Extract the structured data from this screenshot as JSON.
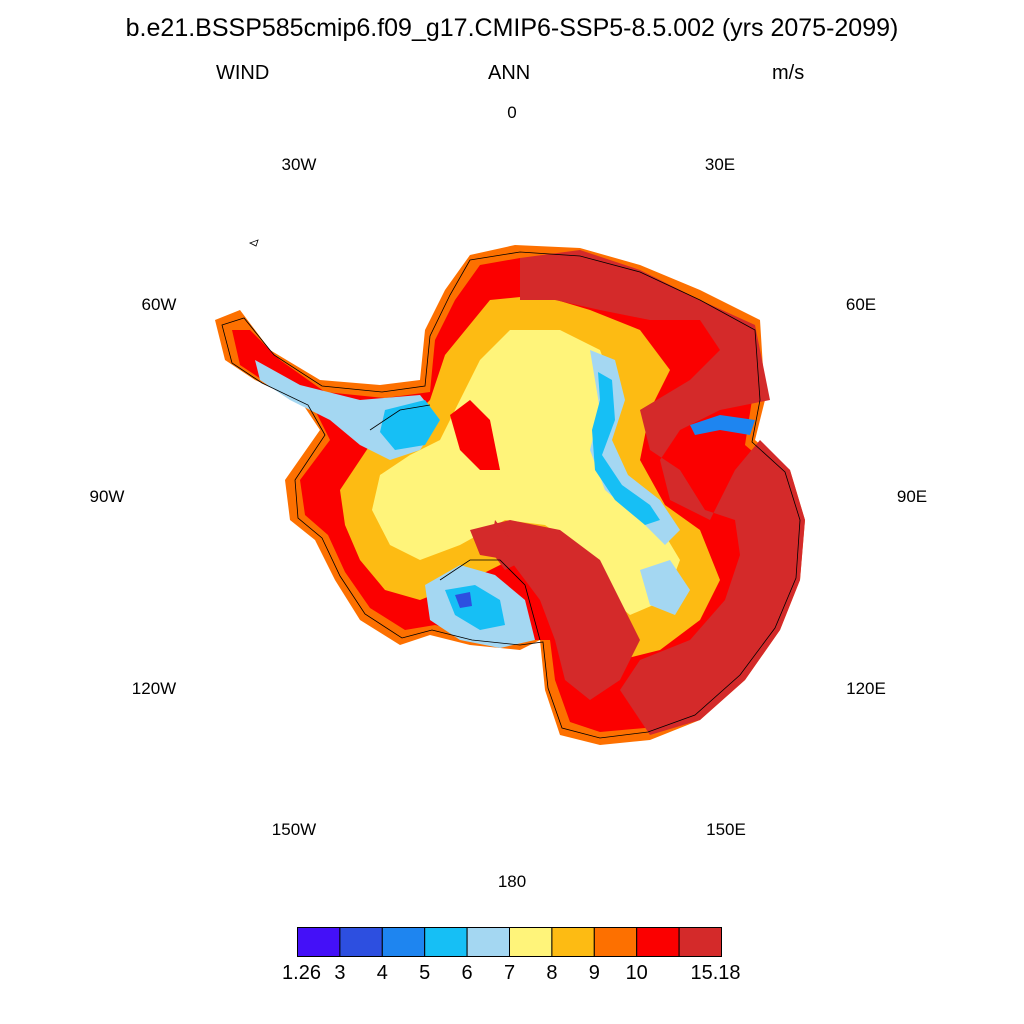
{
  "title": "b.e21.BSSP585cmip6.f09_g17.CMIP6-SSP5-8.5.002 (yrs 2075-2099)",
  "variable": "WIND",
  "season": "ANN",
  "units": "m/s",
  "longitude_labels": [
    "0",
    "30E",
    "60E",
    "90E",
    "120E",
    "150E",
    "180",
    "150W",
    "120W",
    "90W",
    "60W",
    "30W"
  ],
  "colorbar": {
    "colors": [
      "#4410f8",
      "#2d4fe0",
      "#1e85f0",
      "#16bff5",
      "#a4d7f2",
      "#fff47a",
      "#fdbb13",
      "#fd7000",
      "#fb0000",
      "#d42a2a"
    ],
    "labels": [
      "1.26",
      "3",
      "4",
      "5",
      "6",
      "7",
      "8",
      "9",
      "10",
      "15.18"
    ]
  },
  "map": {
    "projection": "south-polar-stereographic",
    "region": "Antarctica",
    "field": "annual mean wind speed"
  }
}
